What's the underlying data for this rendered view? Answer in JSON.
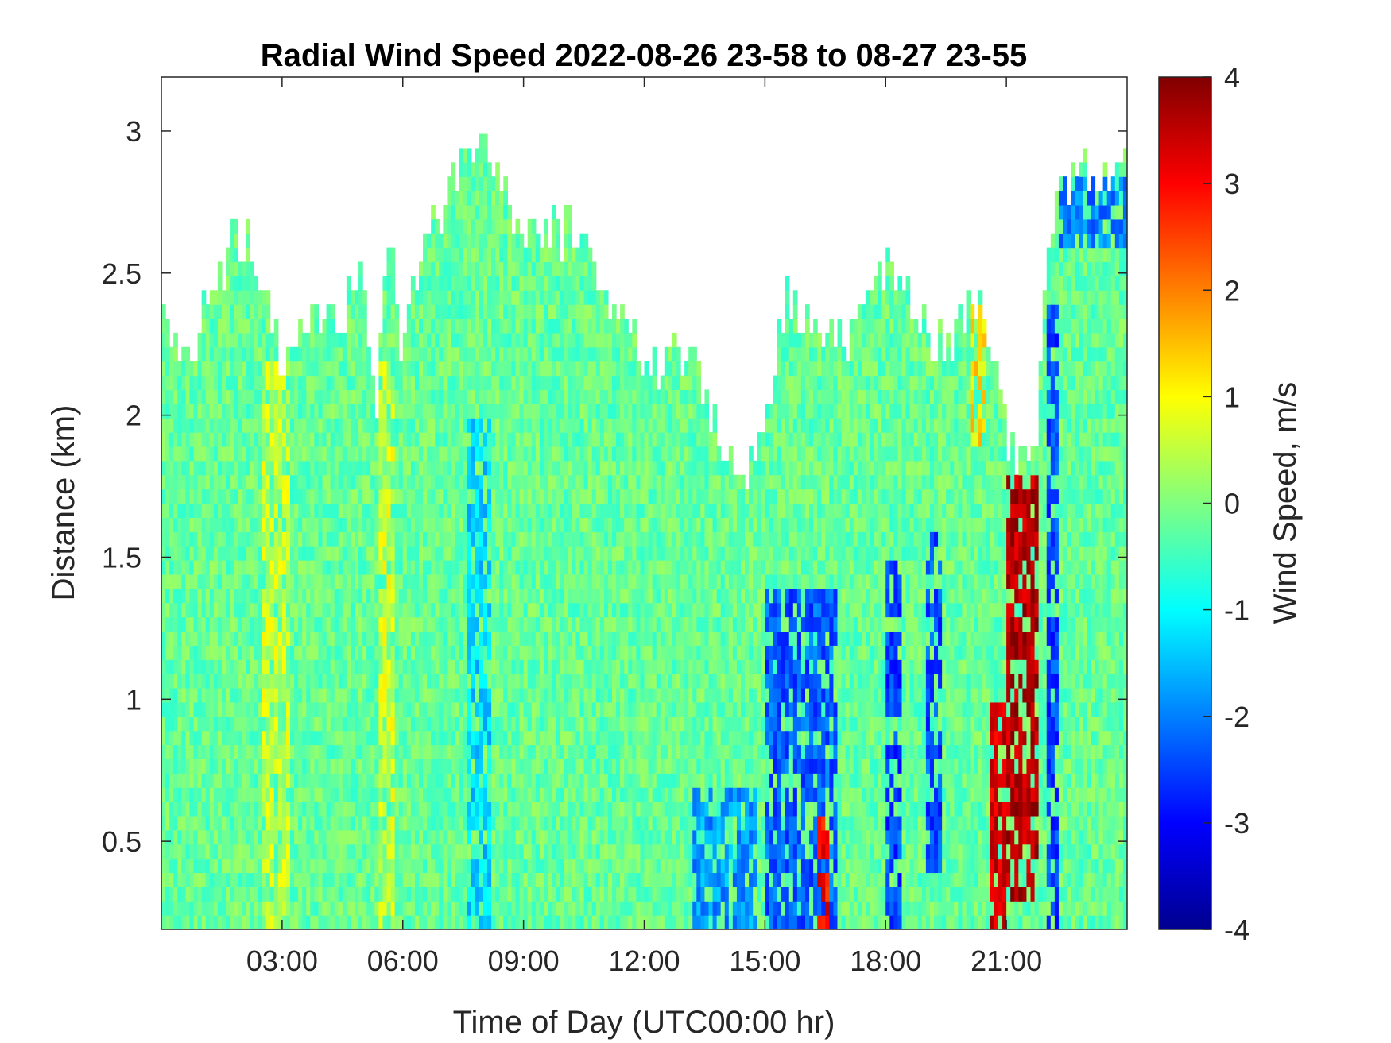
{
  "chart_data": {
    "type": "heatmap",
    "title": "Radial Wind Speed 2022-08-26 23-58 to 08-27 23-55",
    "xlabel": "Time of Day (UTC00:00 hr)",
    "ylabel": "Distance (km)",
    "colorbar_label": "Wind Speed, m/s",
    "colormap": "jet",
    "x_ticks": [
      {
        "value": 3,
        "label": "03:00"
      },
      {
        "value": 6,
        "label": "06:00"
      },
      {
        "value": 9,
        "label": "09:00"
      },
      {
        "value": 12,
        "label": "12:00"
      },
      {
        "value": 15,
        "label": "15:00"
      },
      {
        "value": 18,
        "label": "18:00"
      },
      {
        "value": 21,
        "label": "21:00"
      }
    ],
    "y_ticks": [
      {
        "value": 0.5,
        "label": "0.5"
      },
      {
        "value": 1,
        "label": "1"
      },
      {
        "value": 1.5,
        "label": "1.5"
      },
      {
        "value": 2,
        "label": "2"
      },
      {
        "value": 2.5,
        "label": "2.5"
      },
      {
        "value": 3,
        "label": "3"
      }
    ],
    "colorbar_ticks": [
      {
        "value": 4,
        "label": "4"
      },
      {
        "value": 3,
        "label": "3"
      },
      {
        "value": 2,
        "label": "2"
      },
      {
        "value": 1,
        "label": "1"
      },
      {
        "value": 0,
        "label": "0"
      },
      {
        "value": -1,
        "label": "-1"
      },
      {
        "value": -2,
        "label": "-2"
      },
      {
        "value": -3,
        "label": "-3"
      },
      {
        "value": -4,
        "label": "-4"
      }
    ],
    "xlim": [
      0,
      24
    ],
    "ylim": [
      0.19,
      3.19
    ],
    "clim": [
      -4,
      4
    ],
    "grid": false,
    "data_top_km": [
      {
        "t": 0.0,
        "top": 2.3
      },
      {
        "t": 0.4,
        "top": 2.25
      },
      {
        "t": 0.8,
        "top": 2.2
      },
      {
        "t": 1.2,
        "top": 2.45
      },
      {
        "t": 1.8,
        "top": 2.6
      },
      {
        "t": 2.2,
        "top": 2.6
      },
      {
        "t": 2.8,
        "top": 2.3
      },
      {
        "t": 3.0,
        "top": 2.15
      },
      {
        "t": 3.5,
        "top": 2.3
      },
      {
        "t": 4.0,
        "top": 2.3
      },
      {
        "t": 4.5,
        "top": 2.35
      },
      {
        "t": 5.0,
        "top": 2.5
      },
      {
        "t": 5.3,
        "top": 2.0
      },
      {
        "t": 5.7,
        "top": 2.7
      },
      {
        "t": 6.0,
        "top": 2.2
      },
      {
        "t": 6.5,
        "top": 2.6
      },
      {
        "t": 7.0,
        "top": 2.75
      },
      {
        "t": 7.5,
        "top": 2.9
      },
      {
        "t": 8.0,
        "top": 3.0
      },
      {
        "t": 8.5,
        "top": 2.8
      },
      {
        "t": 9.0,
        "top": 2.6
      },
      {
        "t": 10.0,
        "top": 2.65
      },
      {
        "t": 10.5,
        "top": 2.6
      },
      {
        "t": 11.0,
        "top": 2.45
      },
      {
        "t": 11.5,
        "top": 2.3
      },
      {
        "t": 12.0,
        "top": 2.2
      },
      {
        "t": 12.5,
        "top": 2.2
      },
      {
        "t": 13.0,
        "top": 2.25
      },
      {
        "t": 13.5,
        "top": 2.05
      },
      {
        "t": 14.0,
        "top": 1.9
      },
      {
        "t": 14.3,
        "top": 1.75
      },
      {
        "t": 14.6,
        "top": 1.8
      },
      {
        "t": 15.0,
        "top": 2.0
      },
      {
        "t": 15.5,
        "top": 2.4
      },
      {
        "t": 16.0,
        "top": 2.35
      },
      {
        "t": 16.5,
        "top": 2.3
      },
      {
        "t": 17.0,
        "top": 2.2
      },
      {
        "t": 17.5,
        "top": 2.4
      },
      {
        "t": 18.0,
        "top": 2.5
      },
      {
        "t": 18.5,
        "top": 2.45
      },
      {
        "t": 19.0,
        "top": 2.3
      },
      {
        "t": 19.5,
        "top": 2.25
      },
      {
        "t": 20.0,
        "top": 2.4
      },
      {
        "t": 20.5,
        "top": 2.35
      },
      {
        "t": 21.0,
        "top": 1.95
      },
      {
        "t": 21.3,
        "top": 1.85
      },
      {
        "t": 21.7,
        "top": 1.8
      },
      {
        "t": 22.0,
        "top": 2.5
      },
      {
        "t": 22.3,
        "top": 2.8
      },
      {
        "t": 23.0,
        "top": 2.85
      },
      {
        "t": 24.0,
        "top": 2.85
      }
    ],
    "wind_features_m_s": [
      {
        "t_start": 7.6,
        "t_end": 8.2,
        "z_start": 0.19,
        "z_end": 2.0,
        "value": -1.3
      },
      {
        "t_start": 2.5,
        "t_end": 3.2,
        "z_start": 0.19,
        "z_end": 2.2,
        "value": 0.6
      },
      {
        "t_start": 5.4,
        "t_end": 5.8,
        "z_start": 0.19,
        "z_end": 2.2,
        "value": 0.7
      },
      {
        "t_start": 13.2,
        "t_end": 14.8,
        "z_start": 0.19,
        "z_end": 0.7,
        "value": -1.8
      },
      {
        "t_start": 15.0,
        "t_end": 16.8,
        "z_start": 0.19,
        "z_end": 1.4,
        "value": -2.3
      },
      {
        "t_start": 16.3,
        "t_end": 16.6,
        "z_start": 0.19,
        "z_end": 0.6,
        "value": 3.0
      },
      {
        "t_start": 18.0,
        "t_end": 18.4,
        "z_start": 0.19,
        "z_end": 1.5,
        "value": -2.5
      },
      {
        "t_start": 19.0,
        "t_end": 19.4,
        "z_start": 0.4,
        "z_end": 1.6,
        "value": -2.4
      },
      {
        "t_start": 20.1,
        "t_end": 20.5,
        "z_start": 1.9,
        "z_end": 2.4,
        "value": 1.2
      },
      {
        "t_start": 20.6,
        "t_end": 21.0,
        "z_start": 0.19,
        "z_end": 1.0,
        "value": 3.3
      },
      {
        "t_start": 21.0,
        "t_end": 21.8,
        "z_start": 0.3,
        "z_end": 1.8,
        "value": 3.6
      },
      {
        "t_start": 22.0,
        "t_end": 22.3,
        "z_start": 0.19,
        "z_end": 2.4,
        "value": -2.5
      },
      {
        "t_start": 22.3,
        "t_end": 24.0,
        "z_start": 2.6,
        "z_end": 2.85,
        "value": -2.0
      }
    ],
    "background_value_m_s": -0.2
  }
}
